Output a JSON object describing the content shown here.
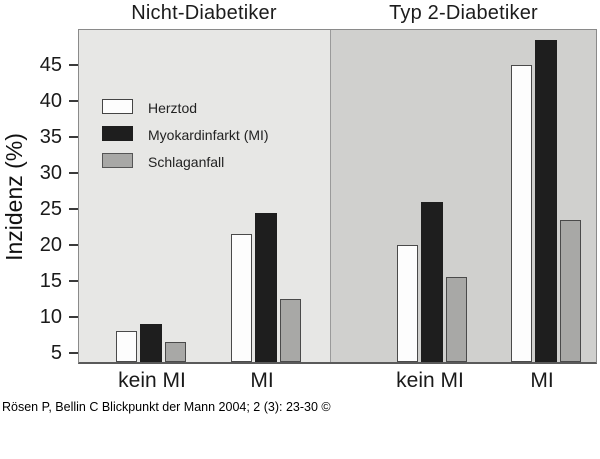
{
  "figure": {
    "panel_titles": {
      "left": "Nicht-Diabetiker",
      "right": "Typ 2-Diabetiker"
    },
    "y_axis_label": "Inzidenz (%)",
    "citation": "Rösen P, Bellin C Blickpunkt der Mann 2004; 2 (3): 23-30 ©"
  },
  "legend": {
    "items": [
      {
        "label": "Herztod",
        "color": "#fdfdfd",
        "border": "#444444"
      },
      {
        "label": "Myokardinfarkt (MI)",
        "color": "#1e1e1e",
        "border": "#1e1e1e"
      },
      {
        "label": "Schlaganfall",
        "color": "#a8a8a6",
        "border": "#555555"
      }
    ]
  },
  "colors": {
    "panel_left_bg": "#e7e7e5",
    "panel_right_bg": "#d0d0ce",
    "plot_border": "#8a8a8a",
    "axis": "#3a3a3a",
    "text": "#1a1a1a"
  },
  "chart_data": {
    "type": "bar",
    "title": "",
    "panels": [
      "Nicht-Diabetiker",
      "Typ 2-Diabetiker"
    ],
    "categories": [
      "kein MI",
      "MI",
      "kein MI",
      "MI"
    ],
    "category_panel": [
      0,
      0,
      1,
      1
    ],
    "series": [
      {
        "name": "Herztod",
        "color": "#fdfdfd",
        "values": [
          8,
          21.5,
          20,
          45
        ]
      },
      {
        "name": "Myokardinfarkt (MI)",
        "color": "#1e1e1e",
        "values": [
          9,
          24.5,
          26,
          48.5
        ]
      },
      {
        "name": "Schlaganfall",
        "color": "#a8a8a6",
        "values": [
          6.5,
          12.5,
          15.5,
          23.5
        ]
      }
    ],
    "ylabel": "Inzidenz (%)",
    "yticks": [
      5,
      10,
      15,
      20,
      25,
      30,
      35,
      40,
      45
    ],
    "ylim": [
      3.75,
      50.5
    ],
    "grid": false,
    "legend_position": "upper-left-inside"
  }
}
